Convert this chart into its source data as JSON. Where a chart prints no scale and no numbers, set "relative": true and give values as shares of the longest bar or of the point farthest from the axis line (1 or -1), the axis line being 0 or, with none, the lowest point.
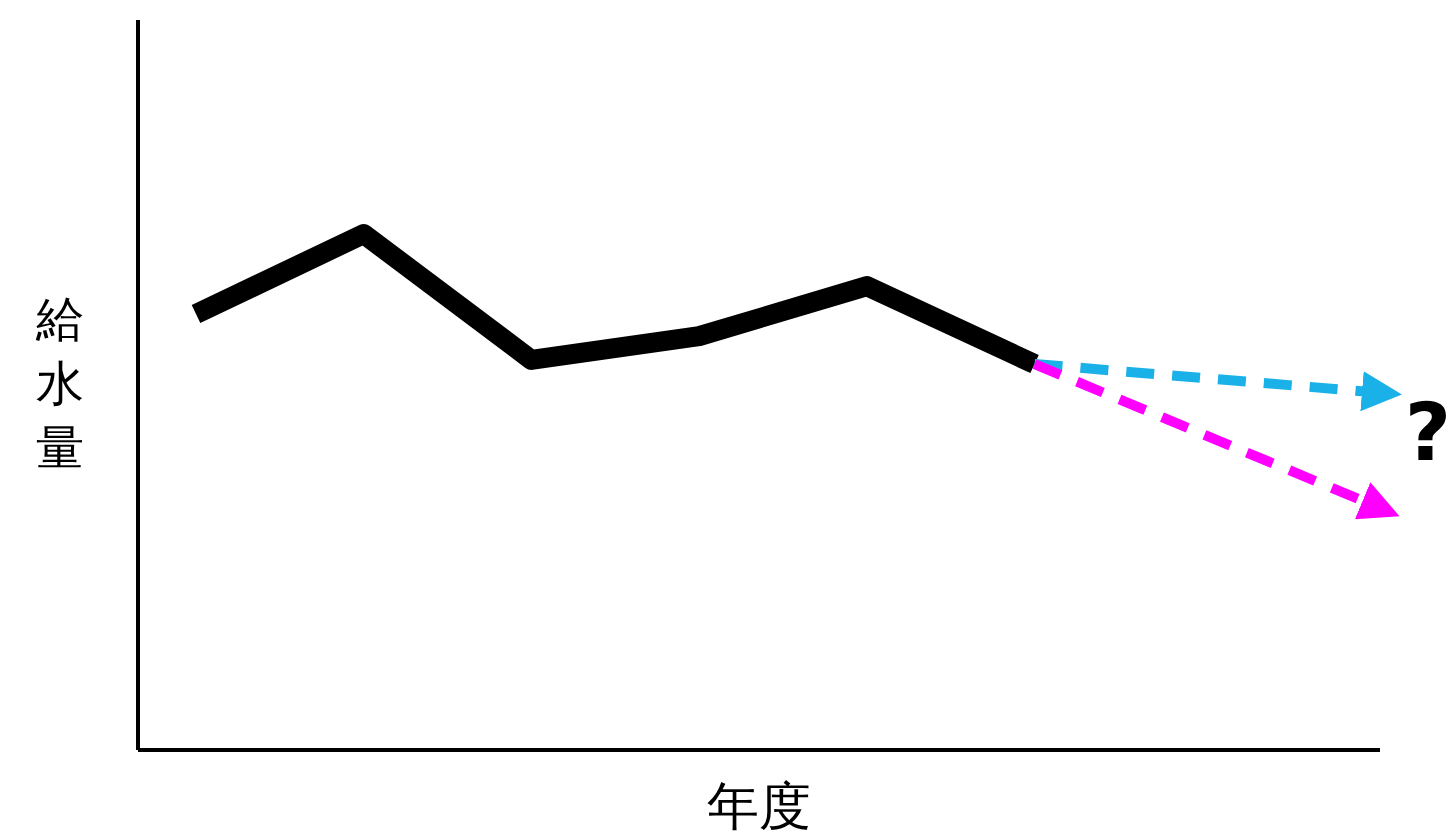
{
  "chart_data": {
    "type": "line",
    "relative": true,
    "xlabel": "年度",
    "ylabel": "給水量",
    "categories": [
      null,
      null,
      null,
      null,
      null,
      null,
      null,
      null
    ],
    "grid": false,
    "marker": "none",
    "annotations": [
      "?"
    ],
    "series": [
      {
        "color": "#000000",
        "line_style": "solid",
        "values": [
          0.845,
          1,
          0.756,
          0.802,
          0.899,
          0.748,
          null,
          null
        ]
      },
      {
        "color": "#1ab0e8",
        "line_style": "dashed",
        "values": [
          null,
          null,
          null,
          null,
          null,
          0.748,
          null,
          0.694
        ]
      },
      {
        "color": "#ff00ff",
        "line_style": "dashed",
        "values": [
          null,
          null,
          null,
          null,
          null,
          0.748,
          null,
          0.477
        ]
      }
    ]
  }
}
